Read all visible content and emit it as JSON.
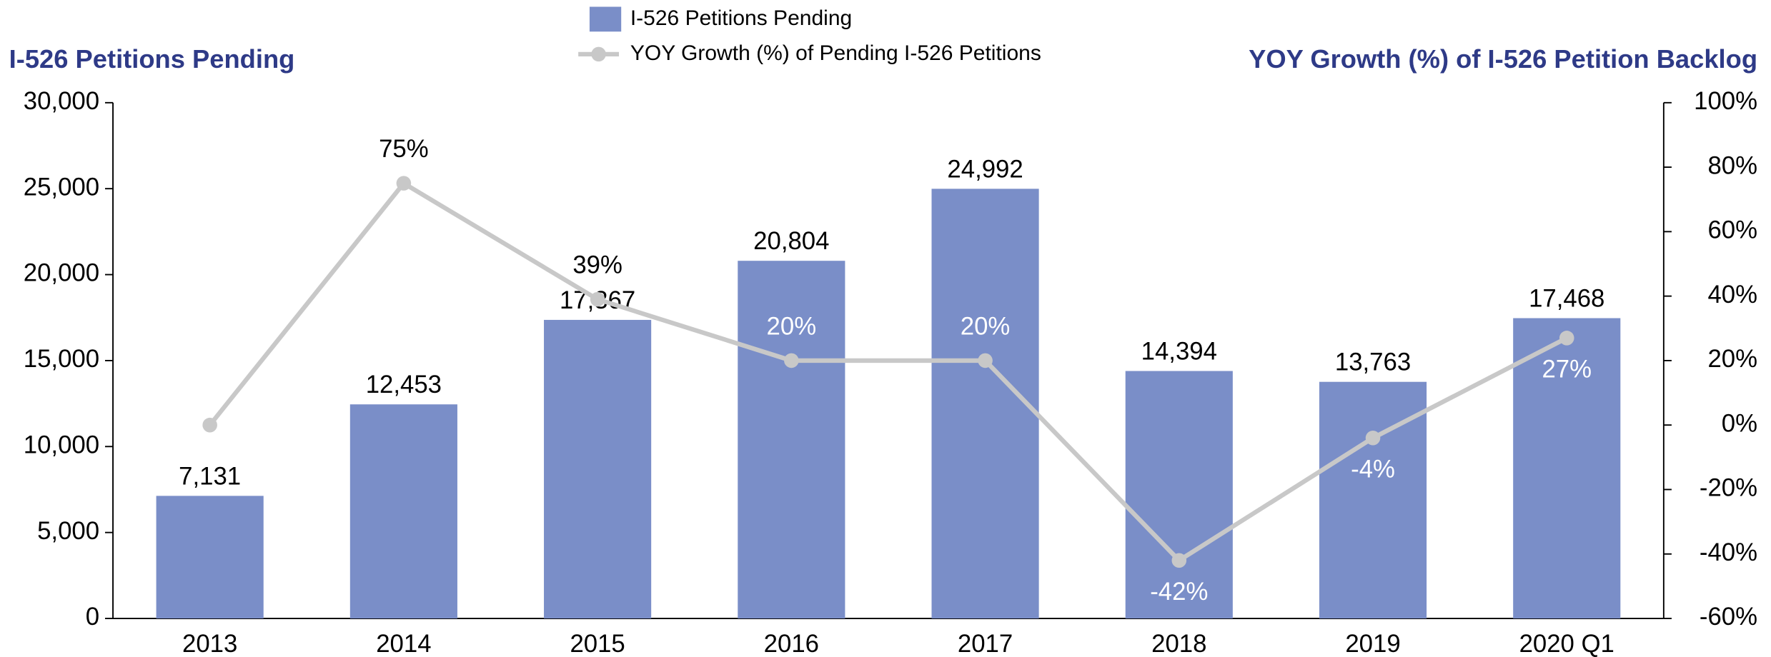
{
  "chart_data": {
    "type": "bar_line",
    "y_label": "I-526 Petitions Pending",
    "y2_label": "YOY Growth (%) of I-526 Petition Backlog",
    "categories": [
      "2013",
      "2014",
      "2015",
      "2016",
      "2017",
      "2018",
      "2019",
      "2020 Q1"
    ],
    "series": [
      {
        "name": "I-526 Petitions Pending",
        "type": "bar",
        "color": "#7a8ec8",
        "values": [
          7131,
          12453,
          17367,
          20804,
          24992,
          14394,
          13763,
          17468
        ],
        "value_labels": [
          "7,131",
          "12,453",
          "17,367",
          "20,804",
          "24,992",
          "14,394",
          "13,763",
          "17,468"
        ]
      },
      {
        "name": "YOY Growth (%) of Pending I-526 Petitions",
        "type": "line",
        "color": "#c8c8c8",
        "axis": "y2",
        "values": [
          0,
          75,
          39,
          20,
          20,
          -42,
          -4,
          27
        ],
        "value_labels": [
          null,
          "75%",
          "39%",
          "20%",
          "20%",
          "-42%",
          "-4%",
          "27%"
        ]
      }
    ],
    "ylim": [
      0,
      30000
    ],
    "yticks": [
      0,
      {
        "value": 5000,
        "label": "5,000"
      },
      {
        "value": 10000,
        "label": "10,000"
      },
      {
        "value": 15000,
        "label": "15,000"
      },
      {
        "value": 20000,
        "label": "20,000"
      },
      {
        "value": 25000,
        "label": "25,000"
      },
      {
        "value": 30000,
        "label": "30,000"
      }
    ],
    "y2lim": [
      -60,
      100
    ],
    "y2ticks": [
      {
        "value": -60,
        "label": "-60%"
      },
      {
        "value": -40,
        "label": "-40%"
      },
      {
        "value": -20,
        "label": "-20%"
      },
      {
        "value": 0,
        "label": "0%"
      },
      {
        "value": 20,
        "label": "20%"
      },
      {
        "value": 40,
        "label": "40%"
      },
      {
        "value": 60,
        "label": "60%"
      },
      {
        "value": 80,
        "label": "80%"
      },
      {
        "value": 100,
        "label": "100%"
      }
    ],
    "legend": "top"
  }
}
